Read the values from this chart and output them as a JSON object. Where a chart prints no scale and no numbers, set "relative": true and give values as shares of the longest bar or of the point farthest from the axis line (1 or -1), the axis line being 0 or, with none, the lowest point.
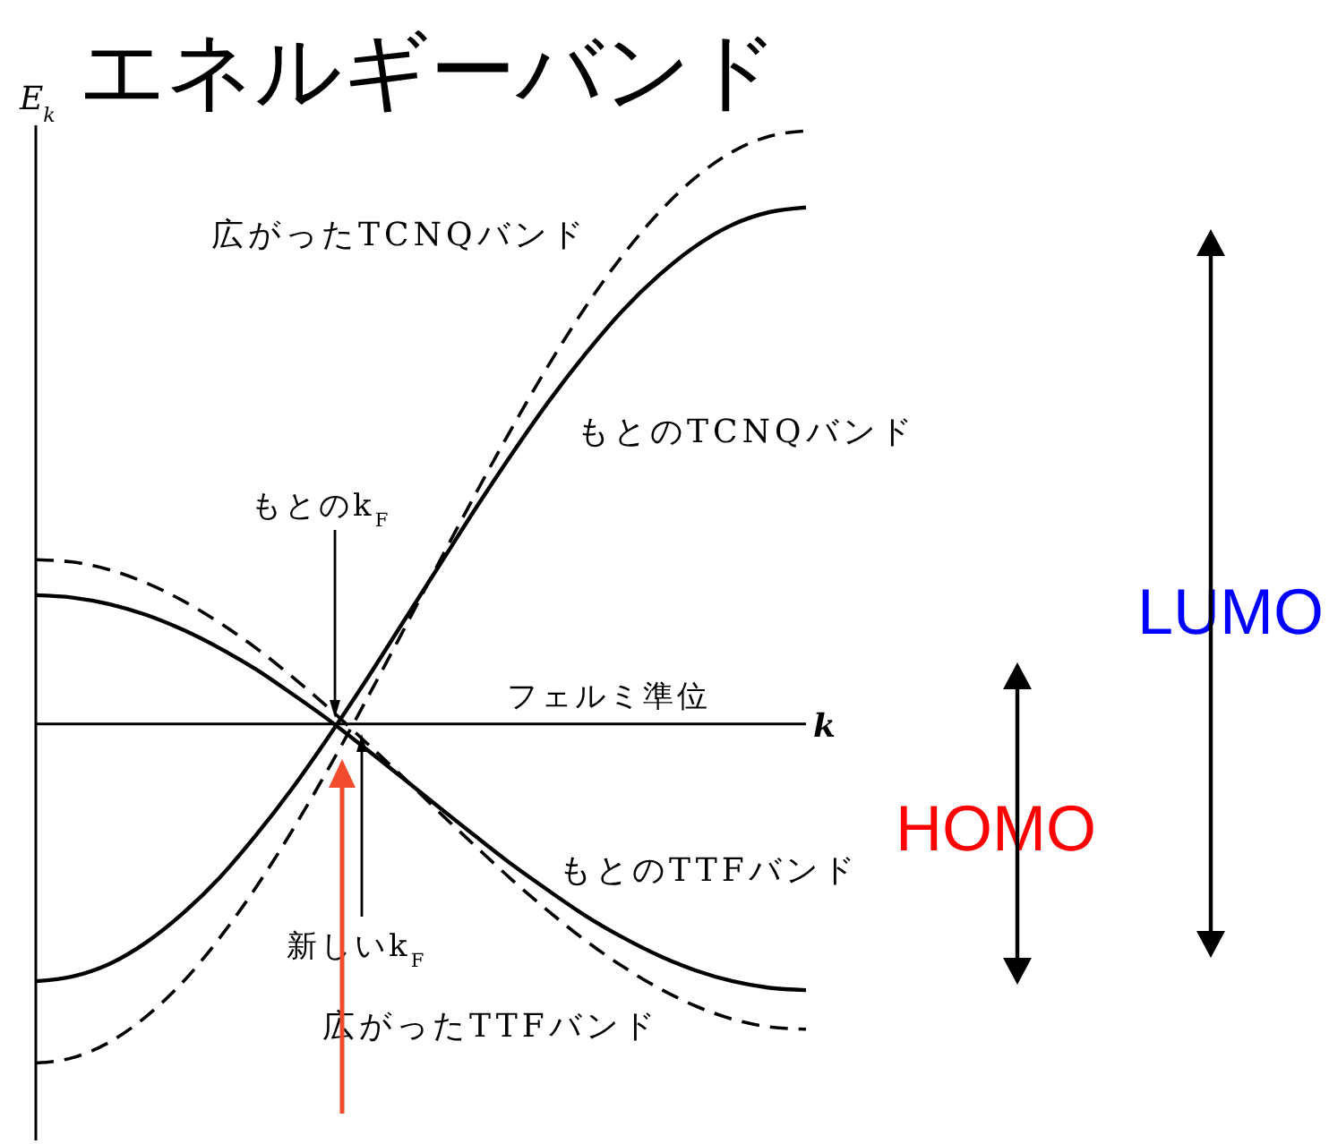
{
  "chart_data": {
    "type": "line",
    "title": "エネルギーバンド",
    "xlabel": "k",
    "ylabel": "E$_{k}$",
    "relative": true,
    "categories": [
      null,
      null,
      null,
      null,
      null,
      null,
      null,
      null,
      null,
      null,
      null,
      null,
      null,
      null,
      null,
      null,
      null,
      null,
      null,
      null,
      null,
      null
    ],
    "series": [
      {
        "name": "広がったTCNQバンド",
        "color": "#000000",
        "line_style": "dashed",
        "values": [
          -0.572,
          -0.563,
          -0.537,
          -0.494,
          -0.436,
          -0.362,
          -0.276,
          -0.179,
          -0.073,
          0.039,
          0.155,
          0.273,
          0.389,
          0.501,
          0.607,
          0.704,
          0.79,
          0.863,
          0.922,
          0.965,
          0.991,
          1.0
        ]
      },
      {
        "name": "もとのTCNQバンド",
        "color": "#000000",
        "line_style": "solid",
        "values": [
          -0.434,
          -0.426,
          -0.405,
          -0.369,
          -0.32,
          -0.26,
          -0.188,
          -0.108,
          -0.02,
          0.073,
          0.17,
          0.267,
          0.364,
          0.457,
          0.545,
          0.625,
          0.697,
          0.757,
          0.806,
          0.842,
          0.863,
          0.871
        ]
      },
      {
        "name": "もとのTTFバンド",
        "color": "#000000",
        "line_style": "solid",
        "values": [
          0.217,
          0.213,
          0.202,
          0.184,
          0.159,
          0.128,
          0.092,
          0.05,
          0.006,
          -0.042,
          -0.091,
          -0.141,
          -0.19,
          -0.238,
          -0.282,
          -0.324,
          -0.36,
          -0.391,
          -0.416,
          -0.434,
          -0.445,
          -0.449
        ]
      },
      {
        "name": "広がったTTFバンド",
        "color": "#000000",
        "line_style": "dashed",
        "values": [
          0.277,
          0.273,
          0.26,
          0.238,
          0.208,
          0.171,
          0.128,
          0.079,
          0.026,
          -0.031,
          -0.089,
          -0.149,
          -0.207,
          -0.264,
          -0.317,
          -0.366,
          -0.409,
          -0.446,
          -0.476,
          -0.498,
          -0.511,
          -0.515
        ]
      }
    ],
    "ref_lines": [
      {
        "axis": "y",
        "value": 0,
        "label": "フェルミ準位",
        "color": "#000000"
      }
    ],
    "annotations": [
      "もとのk$_{F}$",
      "新しいk$_{F}$",
      "HOMO",
      "LUMO"
    ]
  }
}
